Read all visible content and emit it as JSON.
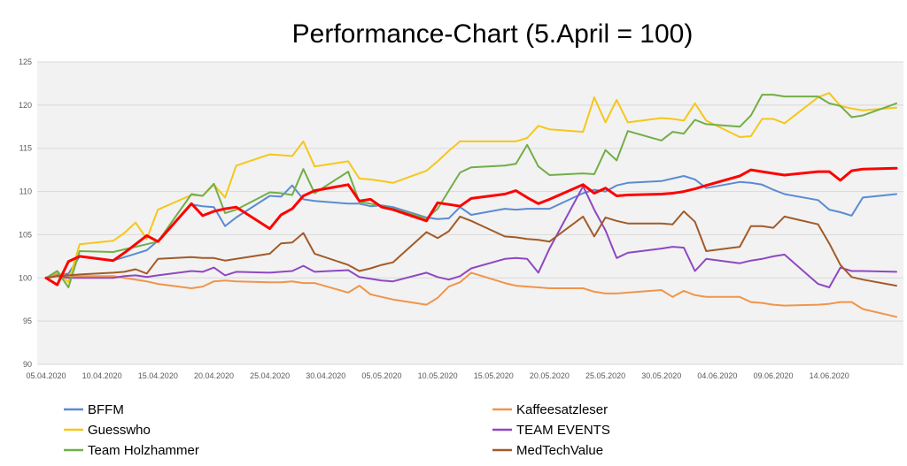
{
  "chart_data": {
    "type": "line",
    "title": "Performance-Chart (5.April = 100)",
    "xlabel": "",
    "ylabel": "",
    "ylim": [
      90,
      125
    ],
    "yticks": [
      90,
      95,
      100,
      105,
      110,
      115,
      120,
      125
    ],
    "grid": true,
    "legend": "bottom",
    "x_tick_labels": [
      "05.04.2020",
      "10.04.2020",
      "15.04.2020",
      "20.04.2020",
      "25.04.2020",
      "30.04.2020",
      "05.05.2020",
      "10.05.2020",
      "15.05.2020",
      "20.05.2020",
      "25.05.2020",
      "30.05.2020",
      "04.06.2020",
      "09.06.2020",
      "14.06.2020"
    ],
    "x_tick_index": [
      0,
      5,
      10,
      15,
      20,
      25,
      30,
      35,
      40,
      45,
      50,
      55,
      60,
      65,
      70
    ],
    "x": [
      0,
      1,
      2,
      3,
      6,
      7,
      8,
      9,
      10,
      13,
      14,
      15,
      16,
      17,
      20,
      21,
      22,
      23,
      24,
      27,
      28,
      29,
      30,
      31,
      34,
      35,
      36,
      37,
      38,
      41,
      42,
      43,
      44,
      45,
      48,
      49,
      50,
      51,
      52,
      55,
      56,
      57,
      58,
      59,
      62,
      63,
      64,
      65,
      66,
      69,
      70,
      71,
      72,
      73,
      76
    ],
    "series": [
      {
        "name": "BFFM",
        "color": "#5b8bd1",
        "values": [
          100,
          100.3,
          100.5,
          102.5,
          102,
          102.4,
          102.8,
          103.2,
          104.3,
          108.5,
          108.3,
          108.2,
          106,
          107,
          109.5,
          109.4,
          110.7,
          109.1,
          108.9,
          108.6,
          108.6,
          108.3,
          108.4,
          108.2,
          107,
          106.8,
          106.9,
          108.2,
          107.3,
          108,
          107.9,
          108,
          108,
          108,
          109.8,
          110.2,
          110,
          110.7,
          111,
          111.2,
          111.5,
          111.8,
          111.4,
          110.4,
          111.1,
          111,
          110.8,
          110.2,
          109.7,
          109,
          107.9,
          107.6,
          107.2,
          109.3,
          109.7
        ]
      },
      {
        "name": "Kaffeesatzleser",
        "color": "#f0954b",
        "values": [
          100,
          100.5,
          100.2,
          100.2,
          100.2,
          100,
          99.8,
          99.6,
          99.3,
          98.8,
          99,
          99.6,
          99.7,
          99.6,
          99.5,
          99.5,
          99.6,
          99.4,
          99.4,
          98.3,
          99.1,
          98.1,
          97.8,
          97.5,
          96.9,
          97.7,
          99,
          99.5,
          100.6,
          99.4,
          99.1,
          99,
          98.9,
          98.8,
          98.8,
          98.4,
          98.2,
          98.2,
          98.3,
          98.6,
          97.8,
          98.5,
          98,
          97.8,
          97.8,
          97.2,
          97.1,
          96.9,
          96.8,
          96.9,
          97,
          97.2,
          97.2,
          96.4,
          95.5
        ]
      },
      {
        "name": "Guesswho",
        "color": "#f5c71a",
        "values": [
          100,
          100.8,
          99.5,
          103.9,
          104.3,
          105.2,
          106.4,
          104.5,
          107.9,
          109.6,
          109.5,
          110.8,
          109.3,
          113,
          114.3,
          114.2,
          114.1,
          115.8,
          112.9,
          113.5,
          111.5,
          111.4,
          111.2,
          111,
          112.4,
          113.5,
          114.7,
          115.8,
          115.8,
          115.8,
          115.8,
          116.2,
          117.6,
          117.2,
          116.9,
          120.9,
          118,
          120.6,
          118,
          118.5,
          118.4,
          118.2,
          120.2,
          118.2,
          116.3,
          116.4,
          118.4,
          118.4,
          117.9,
          120.9,
          121.4,
          119.9,
          119.6,
          119.4,
          119.7
        ]
      },
      {
        "name": "TEAM EVENTS",
        "color": "#8f48c2",
        "values": [
          100,
          100.2,
          100,
          100,
          100,
          100.2,
          100.3,
          100.1,
          100.3,
          100.8,
          100.7,
          101.2,
          100.3,
          100.7,
          100.6,
          100.7,
          100.8,
          101.4,
          100.7,
          100.9,
          100.1,
          99.9,
          99.7,
          99.6,
          100.6,
          100.1,
          99.8,
          100.2,
          101.1,
          102.2,
          102.3,
          102.2,
          100.6,
          103.4,
          110.6,
          107.9,
          105.5,
          102.3,
          102.9,
          103.4,
          103.6,
          103.5,
          100.8,
          102.2,
          101.7,
          102,
          102.2,
          102.5,
          102.7,
          99.3,
          98.9,
          101.2,
          100.8,
          100.8,
          100.7
        ]
      },
      {
        "name": "Team Holzhammer",
        "color": "#72ae48",
        "values": [
          100,
          100.8,
          98.9,
          103.1,
          103,
          103.3,
          103.6,
          103.9,
          104.2,
          109.7,
          109.5,
          110.9,
          107.5,
          107.9,
          109.9,
          109.8,
          109.6,
          112.6,
          109.8,
          112.3,
          108.8,
          108.6,
          108.3,
          108,
          106.9,
          108,
          110.1,
          112.2,
          112.8,
          113,
          113.2,
          115.4,
          112.9,
          111.9,
          112.1,
          112,
          114.8,
          113.6,
          117,
          115.9,
          116.9,
          116.7,
          118.3,
          117.8,
          117.5,
          118.8,
          121.2,
          121.2,
          121,
          121,
          120.2,
          119.9,
          118.6,
          118.8,
          120.2
        ]
      },
      {
        "name": "MedTechValue",
        "color": "#a25b28",
        "values": [
          100,
          100.2,
          100.3,
          100.4,
          100.6,
          100.7,
          101,
          100.5,
          102.2,
          102.4,
          102.3,
          102.3,
          102,
          102.2,
          102.8,
          104,
          104.1,
          105.2,
          102.8,
          101.5,
          100.8,
          101.1,
          101.5,
          101.8,
          105.3,
          104.6,
          105.4,
          107.1,
          106.6,
          104.8,
          104.7,
          104.5,
          104.4,
          104.2,
          107.1,
          104.8,
          107,
          106.6,
          106.3,
          106.3,
          106.2,
          107.7,
          106.5,
          103.1,
          103.6,
          106,
          106,
          105.8,
          107.1,
          106.2,
          104,
          101.5,
          100.1,
          99.8,
          99.1
        ]
      }
    ]
  },
  "highlight_series": {
    "color": "#ff0000",
    "values": [
      100,
      99.2,
      101.9,
      102.5,
      102,
      102.9,
      103.9,
      104.9,
      104.2,
      108.6,
      107.2,
      107.7,
      108,
      108.2,
      105.7,
      107.3,
      108,
      109.5,
      110.1,
      110.8,
      108.9,
      109.1,
      108.2,
      107.9,
      106.6,
      108.7,
      108.5,
      108.3,
      109.2,
      109.7,
      110.1,
      109.3,
      108.6,
      109.1,
      110.8,
      109.8,
      110.4,
      109.5,
      109.6,
      109.7,
      109.8,
      110,
      110.3,
      110.7,
      111.8,
      112.5,
      112.3,
      112.1,
      111.9,
      112.3,
      112.3,
      111.3,
      112.4,
      112.6,
      112.7
    ]
  }
}
